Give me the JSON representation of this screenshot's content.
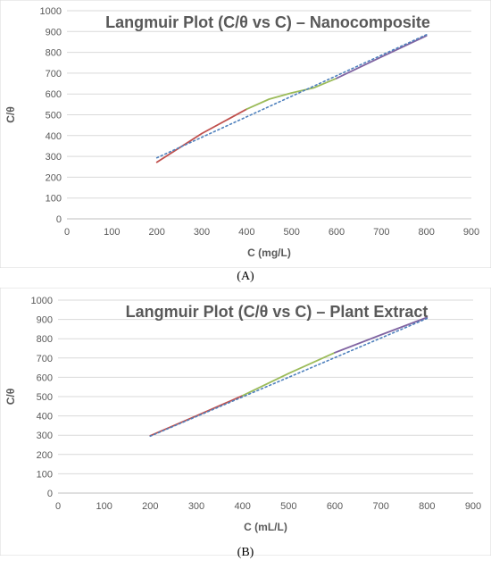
{
  "chart_data": [
    {
      "type": "line",
      "panel_label": "(A)",
      "title": "Langmuir Plot (C/θ vs C) – Nanocomposite",
      "xlabel": "C (mg/L)",
      "ylabel": "C/θ",
      "xlim": [
        0,
        900
      ],
      "ylim": [
        0,
        1000
      ],
      "x_ticks": [
        0,
        100,
        200,
        300,
        400,
        500,
        600,
        700,
        800,
        900
      ],
      "y_ticks": [
        0,
        100,
        200,
        300,
        400,
        500,
        600,
        700,
        800,
        900,
        1000
      ],
      "grid": "horizontal",
      "legend": "none",
      "series": [
        {
          "color": "#c0504d",
          "style": "solid",
          "x": [
            200,
            300,
            400
          ],
          "y": [
            272,
            410,
            527
          ]
        },
        {
          "color": "#9bbb59",
          "style": "solid",
          "x": [
            400,
            450,
            500,
            550,
            600
          ],
          "y": [
            527,
            575,
            605,
            630,
            675
          ]
        },
        {
          "color": "#8064a2",
          "style": "solid",
          "x": [
            600,
            700,
            800
          ],
          "y": [
            675,
            778,
            880
          ]
        },
        {
          "color": "#4f81bd",
          "style": "dotted",
          "x": [
            200,
            800
          ],
          "y": [
            293,
            885
          ]
        }
      ]
    },
    {
      "type": "line",
      "panel_label": "(B)",
      "title": "Langmuir Plot (C/θ vs C) – Plant Extract",
      "xlabel": "C (mL/L)",
      "ylabel": "C/θ",
      "xlim": [
        0,
        900
      ],
      "ylim": [
        0,
        1000
      ],
      "x_ticks": [
        0,
        100,
        200,
        300,
        400,
        500,
        600,
        700,
        800,
        900
      ],
      "y_ticks": [
        0,
        100,
        200,
        300,
        400,
        500,
        600,
        700,
        800,
        900,
        1000
      ],
      "grid": "horizontal",
      "legend": "none",
      "series": [
        {
          "color": "#c0504d",
          "style": "solid",
          "x": [
            200,
            300,
            400
          ],
          "y": [
            297,
            400,
            505
          ]
        },
        {
          "color": "#9bbb59",
          "style": "solid",
          "x": [
            400,
            500,
            600
          ],
          "y": [
            505,
            620,
            728
          ]
        },
        {
          "color": "#8064a2",
          "style": "solid",
          "x": [
            600,
            700,
            800
          ],
          "y": [
            728,
            820,
            910
          ]
        },
        {
          "color": "#4f81bd",
          "style": "dotted",
          "x": [
            200,
            800
          ],
          "y": [
            295,
            905
          ]
        }
      ]
    }
  ]
}
